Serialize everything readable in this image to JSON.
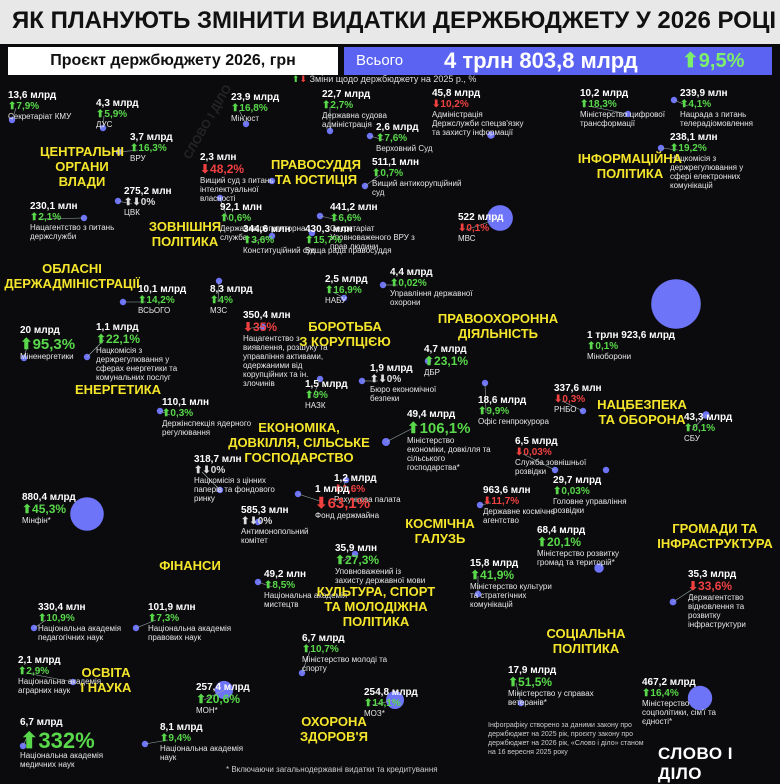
{
  "header": {
    "title": "ЯК ПЛАНУЮТЬ ЗМІНИТИ ВИДАТКИ ДЕРЖБЮДЖЕТУ У 2026 РОЦІ",
    "project_label": "Проєкт держбюджету 2026, грн",
    "all_label": "Всього",
    "total": "4 трлн 803,8 млрд",
    "total_change": "9,5%"
  },
  "legend_text": "Зміни щодо держбюджету на 2025 р., %",
  "footnote": "* Включаючи загальнодержавні видатки та кредитування",
  "credit": "Інфографіку створено за даними закону про держбюджет на 2025 рік, проєкту закону про держбюджет на 2026 рік, «Слово і діло» станом на 16 вересня 2025 року",
  "logo": "СЛОВО І ДІЛО",
  "colors": {
    "bubble": "#6e74f7",
    "up": "#58d84a",
    "down": "#f04040",
    "category": "#f5e62b",
    "background": "#0b0b0d"
  },
  "chart_data": {
    "type": "bubble",
    "title": "ЯК ПЛАНУЮТЬ ЗМІНИТИ ВИДАТКИ ДЕРЖБЮДЖЕТУ У 2026 РОЦІ",
    "categories": [
      {
        "name": "ЦЕНТРАЛЬНІ ОРГАНИ ВЛАДИ",
        "items": [
          {
            "amount": "13,6 млрд",
            "change": "7,9%",
            "dir": "up",
            "name": "Секретаріат КМУ"
          },
          {
            "amount": "4,3 млрд",
            "change": "5,9%",
            "dir": "up",
            "name": "ДУС"
          },
          {
            "amount": "3,7 млрд",
            "change": "16,3%",
            "dir": "up",
            "name": "ВРУ"
          },
          {
            "amount": "275,2 млн",
            "change": "0%",
            "dir": "flat",
            "name": "ЦВК"
          },
          {
            "amount": "230,1 млн",
            "change": "2,1%",
            "dir": "up",
            "name": "Нацагентство з питань держслужби"
          }
        ]
      },
      {
        "name": "ПРАВОСУДДЯ ТА ЮСТИЦІЯ",
        "items": [
          {
            "amount": "23,9 млрд",
            "change": "16,8%",
            "dir": "up",
            "name": "Мін'юст"
          },
          {
            "amount": "22,7 млрд",
            "change": "2,7%",
            "dir": "up",
            "name": "Державна судова адміністрація"
          },
          {
            "amount": "2,6 млрд",
            "change": "7,6%",
            "dir": "up",
            "name": "Верховний Суд"
          },
          {
            "amount": "2,3 млн",
            "change": "48,2%",
            "dir": "down",
            "name": "Вищий суд з питань інтелектуальної власності"
          },
          {
            "amount": "511,1 млн",
            "change": "0,7%",
            "dir": "up",
            "name": "Вищий антикорупційний суд"
          },
          {
            "amount": "441,2 млн",
            "change": "6,6%",
            "dir": "up",
            "name": "Секретаріат Уповноваженого ВРУ з прав людини"
          },
          {
            "amount": "92,1 млн",
            "change": "0,6%",
            "dir": "up",
            "name": "Державна регуляторна служба"
          },
          {
            "amount": "344,6 млн",
            "change": "3,6%",
            "dir": "up",
            "name": "Конституційний суд"
          },
          {
            "amount": "430,3 млн",
            "change": "15,7%",
            "dir": "up",
            "name": "Вища рада правосуддя"
          }
        ]
      },
      {
        "name": "ІНФОРМАЦІЙНА ПОЛІТИКА",
        "items": [
          {
            "amount": "45,8 млрд",
            "change": "10,2%",
            "dir": "down",
            "name": "Адміністрація Держслужби спецзв'язку та захисту інформації"
          },
          {
            "amount": "10,2 млрд",
            "change": "18,3%",
            "dir": "up",
            "name": "Міністерство цифрової трансформації"
          },
          {
            "amount": "239,9 млн",
            "change": "4,1%",
            "dir": "up",
            "name": "Нацрада з питань телерадіомовлення"
          },
          {
            "amount": "238,1 млн",
            "change": "19,2%",
            "dir": "up",
            "name": "Нацкомісія з держрегулювання у сфері електронних комунікацій"
          }
        ]
      },
      {
        "name": "ЗОВНІШНЯ ПОЛІТИКА",
        "items": [
          {
            "amount": "8,3 млрд",
            "change": "4%",
            "dir": "up",
            "name": "МЗС"
          }
        ]
      },
      {
        "name": "ОБЛАСНІ ДЕРЖАДМІНІСТРАЦІЇ",
        "items": [
          {
            "amount": "10,1 млрд",
            "change": "14,2%",
            "dir": "up",
            "name": "ВСЬОГО"
          }
        ]
      },
      {
        "name": "ПРАВООХОРОННА ДІЯЛЬНІСТЬ",
        "items": [
          {
            "amount": "522 млрд",
            "change": "0,1%",
            "dir": "down",
            "name": "МВС"
          },
          {
            "amount": "4,4 млрд",
            "change": "0,02%",
            "dir": "up",
            "name": "Управління державної охорони"
          },
          {
            "amount": "4,7 млрд",
            "change": "23,1%",
            "dir": "up",
            "name": "ДБР"
          },
          {
            "amount": "18,6 млрд",
            "change": "9,9%",
            "dir": "up",
            "name": "Офіс генпрокурора"
          }
        ]
      },
      {
        "name": "БОРОТЬБА З КОРУПЦІЄЮ",
        "items": [
          {
            "amount": "2,5 млрд",
            "change": "16,9%",
            "dir": "up",
            "name": "НАБУ"
          },
          {
            "amount": "350,4 млн",
            "change": "35%",
            "dir": "down",
            "name": "Нацагентство з виявлення, розшуку та управління активами, одержаними від корупційних та ін. злочинів"
          },
          {
            "amount": "1,5 млрд",
            "change": "9%",
            "dir": "up",
            "name": "НАЗК"
          },
          {
            "amount": "1,9 млрд",
            "change": "0%",
            "dir": "flat",
            "name": "Бюро економічної безпеки"
          }
        ]
      },
      {
        "name": "НАЦБЕЗПЕКА ТА ОБОРОНА",
        "items": [
          {
            "amount": "1 трлн 923,6 млрд",
            "change": "0,1%",
            "dir": "up",
            "name": "Міноборони"
          },
          {
            "amount": "337,6 млн",
            "change": "0,3%",
            "dir": "down",
            "name": "РНБО"
          },
          {
            "amount": "43,3 млрд",
            "change": "0,1%",
            "dir": "up",
            "name": "СБУ"
          },
          {
            "amount": "6,5 млрд",
            "change": "0,03%",
            "dir": "down",
            "name": "Служба зовнішньої розвідки"
          },
          {
            "amount": "29,7 млрд",
            "change": "0,03%",
            "dir": "up",
            "name": "Головне управління розвідки"
          }
        ]
      },
      {
        "name": "ЕНЕРГЕТИКА",
        "items": [
          {
            "amount": "20 млрд",
            "change": "95,3%",
            "dir": "up",
            "name": "Міненергетики"
          },
          {
            "amount": "1,1 млрд",
            "change": "22,1%",
            "dir": "up",
            "name": "Нацкомісія з держрегулювання у сферах енергетики та комунальних послуг"
          },
          {
            "amount": "110,1 млн",
            "change": "0,3%",
            "dir": "up",
            "name": "Держінспекція ядерного регулювання"
          }
        ]
      },
      {
        "name": "ЕКОНОМІКА, ДОВКІЛЛЯ, СІЛЬСЬКЕ ГОСПОДАРСТВО",
        "items": [
          {
            "amount": "49,4 млрд",
            "change": "106,1%",
            "dir": "up",
            "name": "Міністерство економіки, довкілля та сільського господарства*"
          },
          {
            "amount": "318,7 млн",
            "change": "0%",
            "dir": "flat",
            "name": "Нацкомісія з цінних паперів та фондового ринку"
          },
          {
            "amount": "1,2 млрд",
            "change": "1,6%",
            "dir": "down",
            "name": "Рахункова палата"
          },
          {
            "amount": "585,3 млн",
            "change": "0%",
            "dir": "flat",
            "name": "Антимонопольний комітет"
          },
          {
            "amount": "1 млрд",
            "change": "63,1%",
            "dir": "down",
            "name": "Фонд держмайна"
          }
        ]
      },
      {
        "name": "ФІНАНСИ",
        "items": [
          {
            "amount": "880,4 млрд",
            "change": "45,3%",
            "dir": "up",
            "name": "Мінфін*"
          }
        ]
      },
      {
        "name": "КОСМІЧНА ГАЛУЗЬ",
        "items": [
          {
            "amount": "963,6 млн",
            "change": "11,7%",
            "dir": "down",
            "name": "Державне космічне агентство"
          }
        ]
      },
      {
        "name": "ГРОМАДИ ТА ІНФРАСТРУКТУРА",
        "items": [
          {
            "amount": "68,4 млрд",
            "change": "20,1%",
            "dir": "up",
            "name": "Міністерство розвитку громад та територій*"
          },
          {
            "amount": "35,3 млрд",
            "change": "33,6%",
            "dir": "down",
            "name": "Держагентство відновлення та розвитку інфраструктури"
          }
        ]
      },
      {
        "name": "КУЛЬТУРА, СПОРТ ТА МОЛОДІЖНА ПОЛІТИКА",
        "items": [
          {
            "amount": "35,9 млн",
            "change": "27,3%",
            "dir": "up",
            "name": "Уповноважений із захисту державної мови"
          },
          {
            "amount": "49,2 млн",
            "change": "8,5%",
            "dir": "up",
            "name": "Національна академія мистецтв"
          },
          {
            "amount": "15,8 млрд",
            "change": "41,9%",
            "dir": "up",
            "name": "Міністерство культури та стратегічних комунікацій"
          },
          {
            "amount": "6,7 млрд",
            "change": "10,7%",
            "dir": "up",
            "name": "Міністерство молоді та спорту"
          }
        ]
      },
      {
        "name": "ОСВІТА І НАУКА",
        "items": [
          {
            "amount": "330,4 млн",
            "change": "10,9%",
            "dir": "up",
            "name": "Національна академія педагогічних наук"
          },
          {
            "amount": "101,9 млн",
            "change": "7,3%",
            "dir": "up",
            "name": "Національна академія правових наук"
          },
          {
            "amount": "2,1 млрд",
            "change": "2,9%",
            "dir": "up",
            "name": "Національна академія аграрних наук"
          },
          {
            "amount": "257,4 млрд",
            "change": "20,6%",
            "dir": "up",
            "name": "МОН*"
          },
          {
            "amount": "6,7 млрд",
            "change": "332%",
            "dir": "up",
            "name": "Національна академія медичних наук"
          },
          {
            "amount": "8,1 млрд",
            "change": "9,4%",
            "dir": "up",
            "name": "Національна академія наук"
          }
        ]
      },
      {
        "name": "ОХОРОНА ЗДОРОВ'Я",
        "items": [
          {
            "amount": "254,8 млрд",
            "change": "14,1%",
            "dir": "up",
            "name": "МОЗ*"
          }
        ]
      },
      {
        "name": "СОЦІАЛЬНА ПОЛІТИКА",
        "items": [
          {
            "amount": "17,9 млрд",
            "change": "51,5%",
            "dir": "up",
            "name": "Міністерство у справах ветеранів*"
          },
          {
            "amount": "467,2 млрд",
            "change": "16,4%",
            "dir": "up",
            "name": "Міністерство соцполітики, сім'ї та єдності*"
          }
        ]
      }
    ]
  }
}
